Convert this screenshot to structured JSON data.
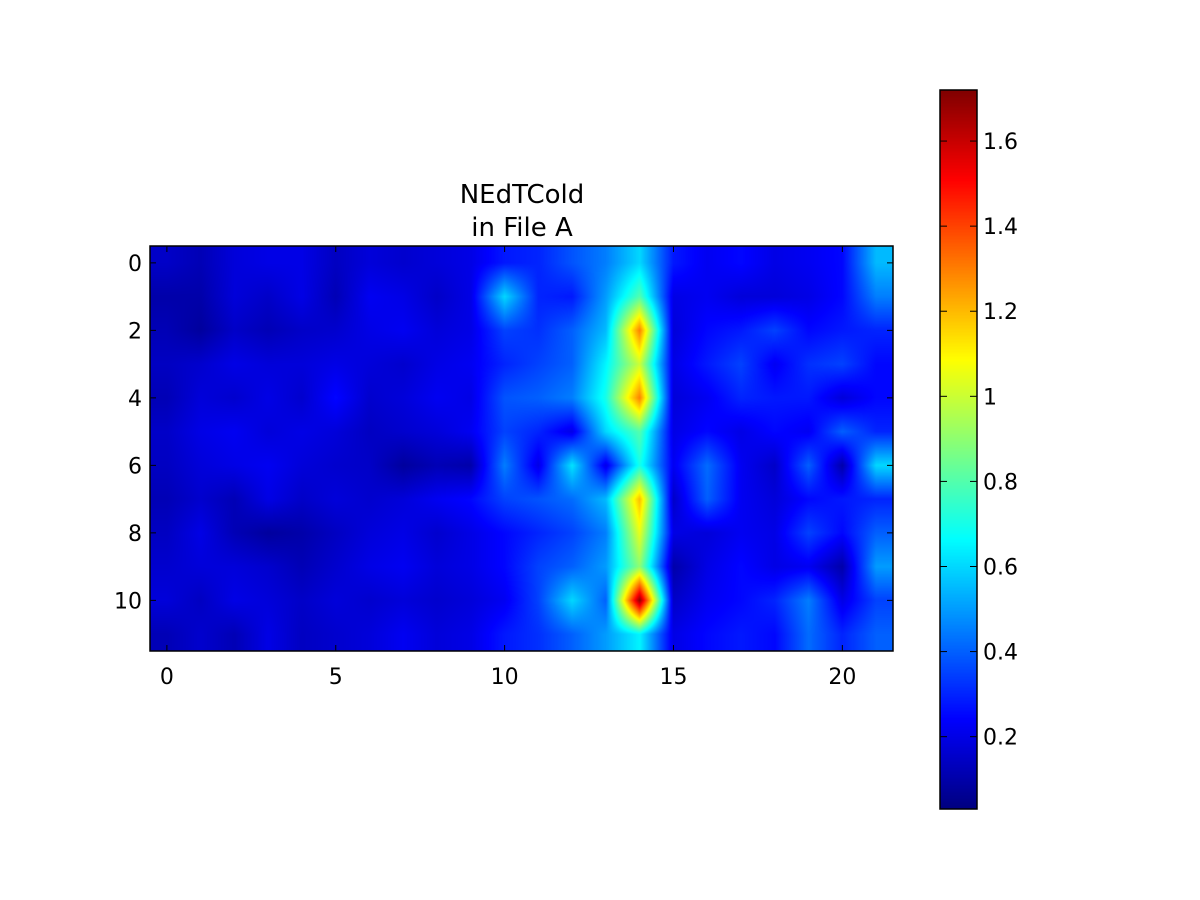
{
  "chart_data": {
    "type": "heatmap",
    "title": "NEdTCold\nin File A",
    "xlabel": "",
    "ylabel": "",
    "colormap": "jet",
    "interpolation": "bilinear",
    "grid": false,
    "x": [
      0,
      1,
      2,
      3,
      4,
      5,
      6,
      7,
      8,
      9,
      10,
      11,
      12,
      13,
      14,
      15,
      16,
      17,
      18,
      19,
      20,
      21
    ],
    "y": [
      0,
      1,
      2,
      3,
      4,
      5,
      6,
      7,
      8,
      9,
      10,
      11
    ],
    "xlim": [
      -0.5,
      21.5
    ],
    "ylim": [
      11.5,
      -0.5
    ],
    "x_ticks": [
      0,
      5,
      10,
      15,
      20
    ],
    "x_tick_labels": [
      "0",
      "5",
      "10",
      "15",
      "20"
    ],
    "y_ticks": [
      0,
      2,
      4,
      6,
      8,
      10
    ],
    "y_tick_labels": [
      "0",
      "2",
      "4",
      "6",
      "8",
      "10"
    ],
    "z": [
      [
        0.15,
        0.12,
        0.18,
        0.2,
        0.2,
        0.14,
        0.18,
        0.16,
        0.18,
        0.2,
        0.28,
        0.3,
        0.38,
        0.45,
        0.6,
        0.28,
        0.22,
        0.25,
        0.2,
        0.22,
        0.25,
        0.55
      ],
      [
        0.1,
        0.1,
        0.18,
        0.15,
        0.2,
        0.12,
        0.22,
        0.2,
        0.15,
        0.2,
        0.6,
        0.3,
        0.28,
        0.5,
        0.8,
        0.2,
        0.22,
        0.18,
        0.18,
        0.2,
        0.25,
        0.45
      ],
      [
        0.12,
        0.08,
        0.15,
        0.12,
        0.15,
        0.16,
        0.2,
        0.22,
        0.18,
        0.2,
        0.35,
        0.32,
        0.4,
        0.55,
        1.3,
        0.18,
        0.25,
        0.28,
        0.35,
        0.25,
        0.28,
        0.3
      ],
      [
        0.14,
        0.16,
        0.2,
        0.18,
        0.18,
        0.2,
        0.18,
        0.16,
        0.2,
        0.22,
        0.3,
        0.35,
        0.4,
        0.65,
        1.0,
        0.2,
        0.28,
        0.35,
        0.22,
        0.32,
        0.35,
        0.25
      ],
      [
        0.12,
        0.18,
        0.16,
        0.2,
        0.16,
        0.25,
        0.16,
        0.18,
        0.22,
        0.2,
        0.38,
        0.4,
        0.45,
        0.7,
        1.3,
        0.18,
        0.22,
        0.3,
        0.28,
        0.28,
        0.18,
        0.25
      ],
      [
        0.15,
        0.2,
        0.22,
        0.18,
        0.2,
        0.18,
        0.14,
        0.16,
        0.18,
        0.22,
        0.35,
        0.3,
        0.2,
        0.6,
        0.8,
        0.2,
        0.25,
        0.2,
        0.25,
        0.22,
        0.4,
        0.3
      ],
      [
        0.14,
        0.18,
        0.2,
        0.22,
        0.18,
        0.16,
        0.15,
        0.08,
        0.12,
        0.1,
        0.45,
        0.2,
        0.62,
        0.2,
        0.7,
        0.22,
        0.42,
        0.22,
        0.15,
        0.4,
        0.1,
        0.6
      ],
      [
        0.12,
        0.16,
        0.12,
        0.2,
        0.15,
        0.18,
        0.16,
        0.18,
        0.22,
        0.25,
        0.35,
        0.38,
        0.42,
        0.55,
        1.2,
        0.15,
        0.4,
        0.22,
        0.18,
        0.25,
        0.28,
        0.3
      ],
      [
        0.14,
        0.2,
        0.12,
        0.08,
        0.1,
        0.14,
        0.18,
        0.2,
        0.16,
        0.2,
        0.25,
        0.3,
        0.35,
        0.45,
        1.05,
        0.2,
        0.18,
        0.22,
        0.2,
        0.35,
        0.25,
        0.4
      ],
      [
        0.16,
        0.18,
        0.18,
        0.16,
        0.12,
        0.16,
        0.2,
        0.22,
        0.18,
        0.2,
        0.25,
        0.35,
        0.4,
        0.5,
        0.9,
        0.1,
        0.2,
        0.25,
        0.2,
        0.22,
        0.1,
        0.5
      ],
      [
        0.18,
        0.14,
        0.2,
        0.18,
        0.15,
        0.18,
        0.16,
        0.18,
        0.16,
        0.18,
        0.22,
        0.35,
        0.6,
        0.4,
        1.7,
        0.15,
        0.22,
        0.25,
        0.3,
        0.45,
        0.2,
        0.35
      ],
      [
        0.12,
        0.16,
        0.12,
        0.2,
        0.14,
        0.16,
        0.18,
        0.22,
        0.18,
        0.2,
        0.28,
        0.32,
        0.4,
        0.5,
        0.65,
        0.2,
        0.25,
        0.28,
        0.25,
        0.42,
        0.3,
        0.4
      ]
    ],
    "colorbar": {
      "vmin": 0.03,
      "vmax": 1.72,
      "ticks": [
        0.2,
        0.4,
        0.6,
        0.8,
        1.0,
        1.2,
        1.4,
        1.6
      ],
      "tick_labels": [
        "0.2",
        "0.4",
        "0.6",
        "0.8",
        "1",
        "1.2",
        "1.4",
        "1.6"
      ]
    }
  }
}
